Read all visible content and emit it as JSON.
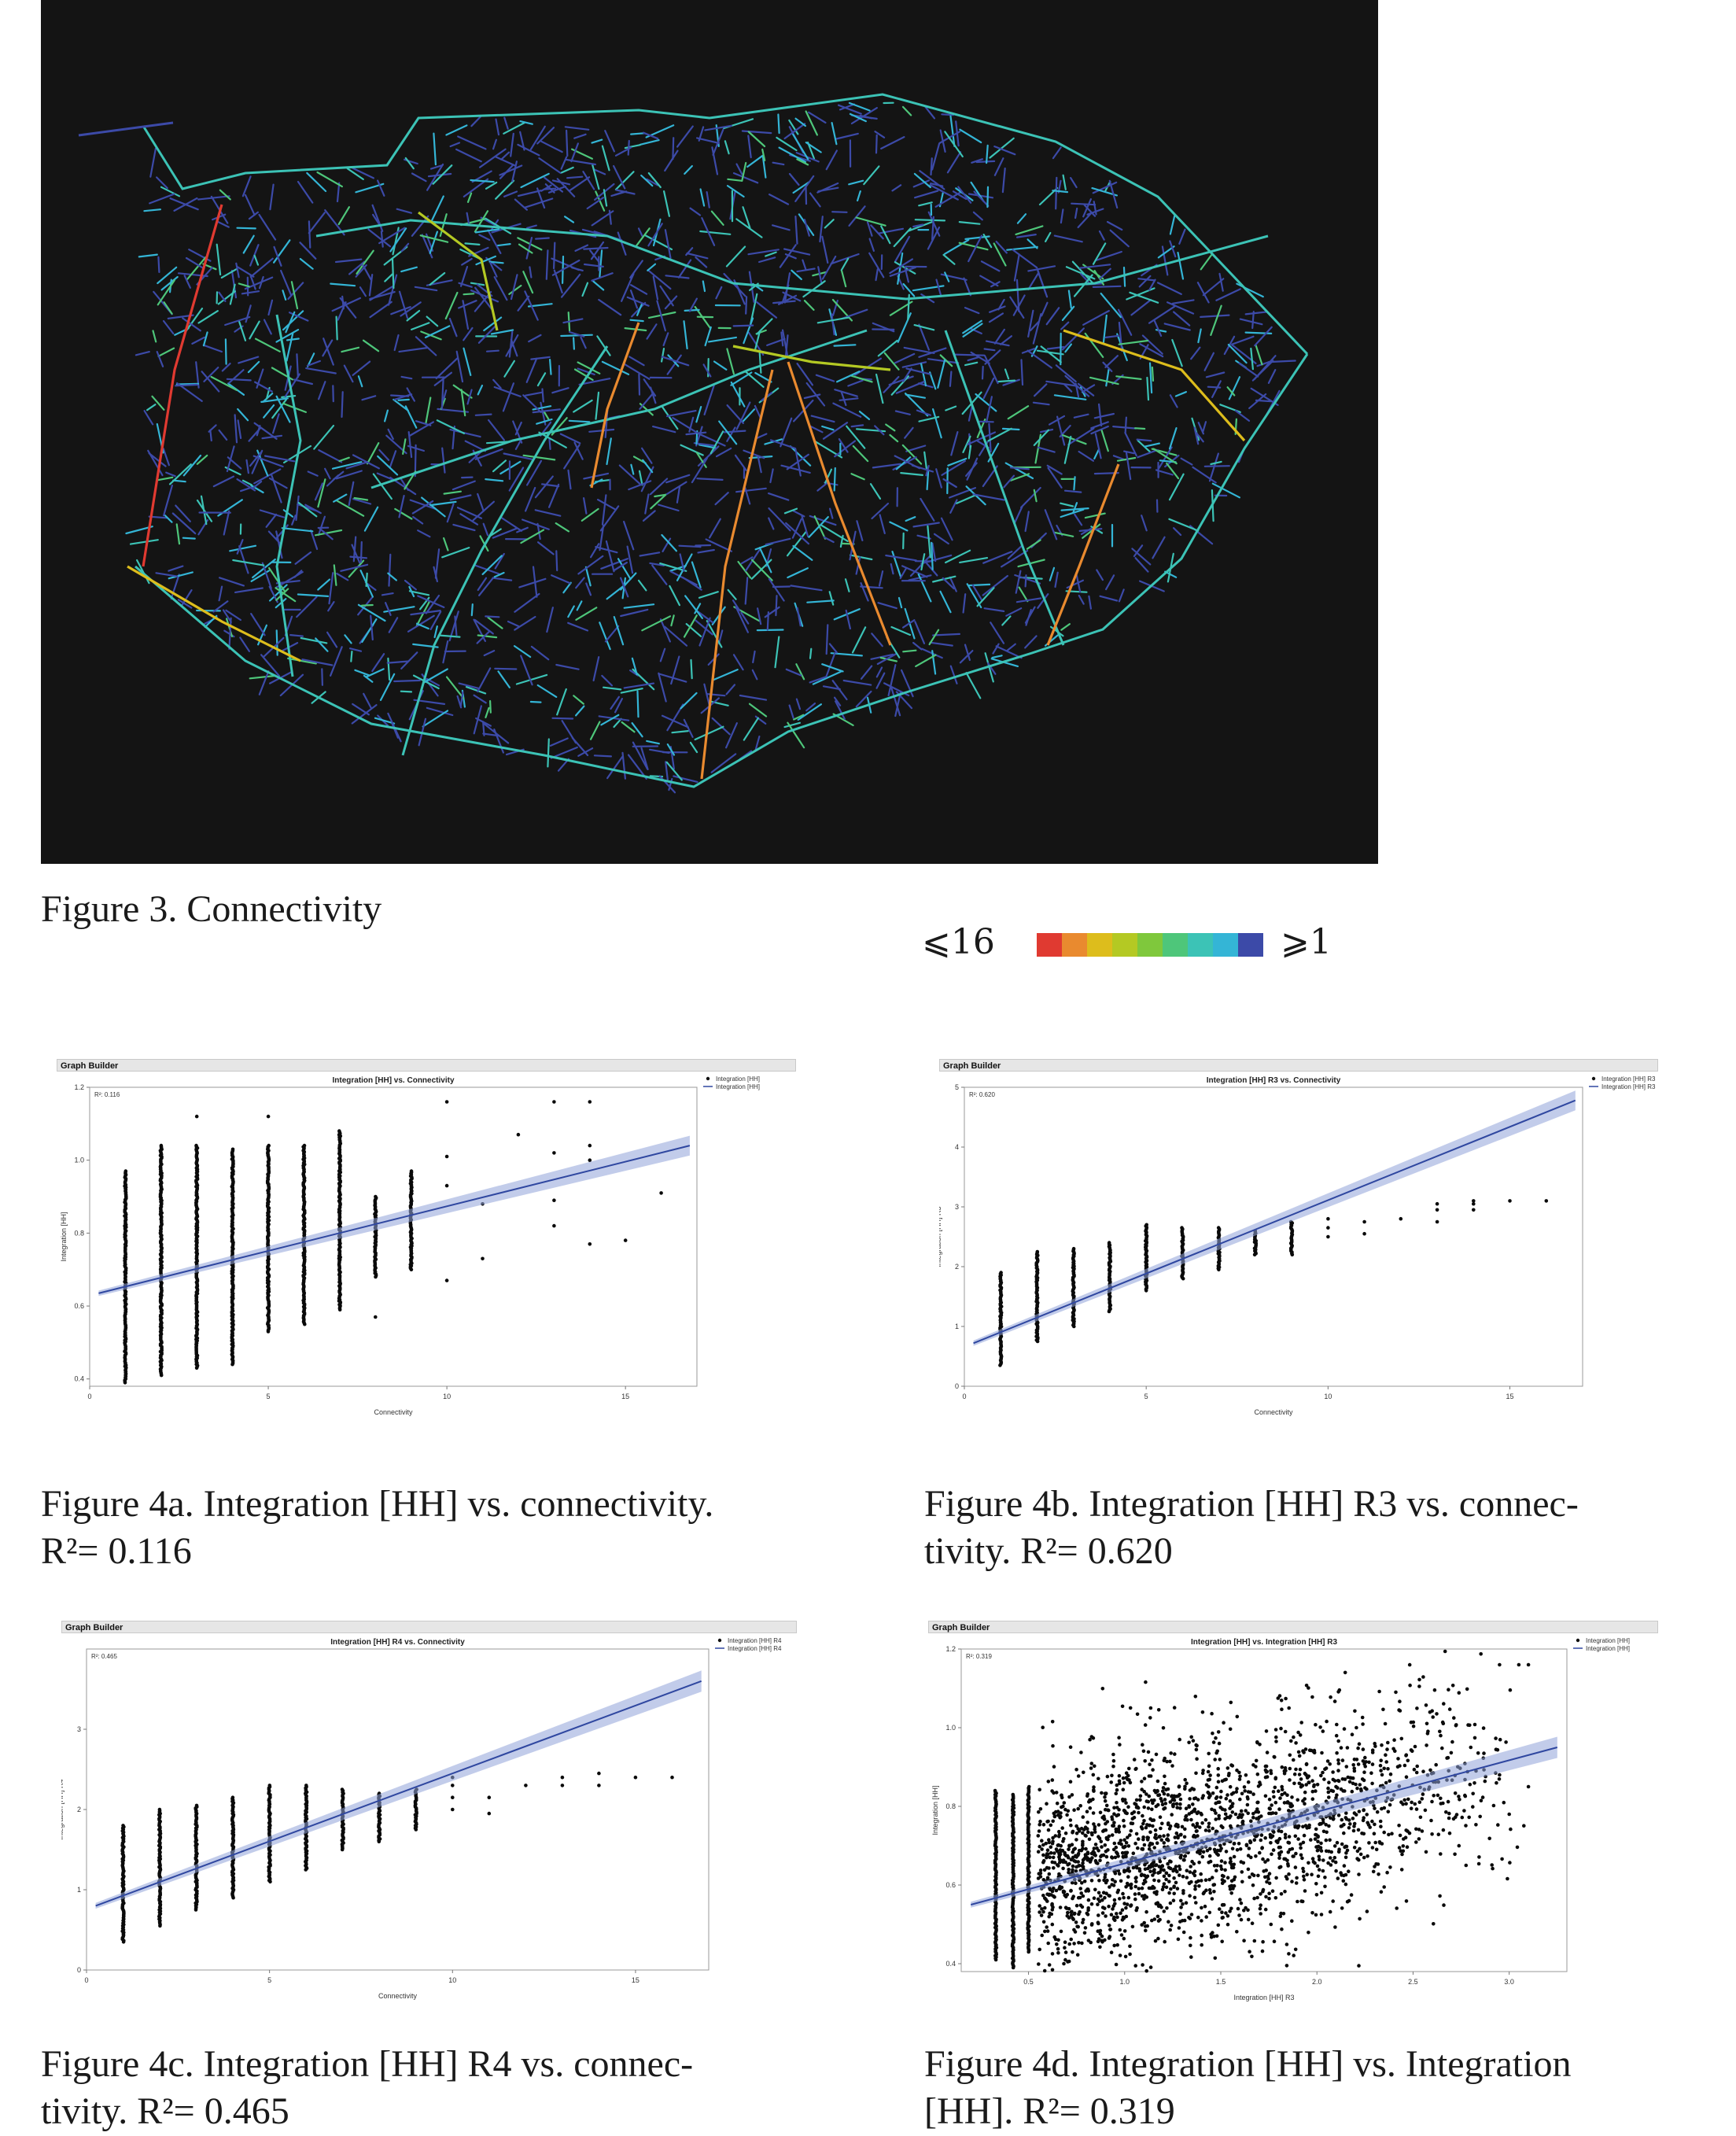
{
  "figure3": {
    "caption": "Figure 3. Connectivity",
    "legend": {
      "max_label": "⩽16",
      "min_label": "⩾1",
      "colors": [
        "#e03a31",
        "#e98a2f",
        "#ddbd1c",
        "#b4c923",
        "#7fc83c",
        "#4ec67a",
        "#3cc3b6",
        "#34b5d6",
        "#3c4aa8"
      ]
    }
  },
  "charts": [
    {
      "id": "4a",
      "header": "Graph Builder",
      "caption_line1": "Figure 4a. Integration [HH] vs. connectivity.",
      "caption_line2": "R²= 0.116",
      "chart_data": {
        "type": "scatter",
        "title": "Integration [HH] vs. Connectivity",
        "xlabel": "Connectivity",
        "ylabel": "Integration [HH]",
        "r2_label": "R²: 0.116",
        "legend": [
          "Integration [HH]",
          "Integration [HH]"
        ],
        "xlim": [
          0,
          17
        ],
        "ylim": [
          0.38,
          1.2
        ],
        "xticks": [
          0,
          5,
          10,
          15
        ],
        "yticks": [
          0.4,
          0.6,
          0.8,
          1.0,
          1.2
        ],
        "ytick_labels": [
          "0.4",
          "0.6",
          "0.8",
          "1.0",
          "1.2"
        ],
        "fit": {
          "x": [
            0.25,
            16.8
          ],
          "y": [
            0.635,
            1.04
          ]
        },
        "columns": [
          {
            "x": 1,
            "min": 0.39,
            "max": 0.97
          },
          {
            "x": 2,
            "min": 0.41,
            "max": 1.04
          },
          {
            "x": 3,
            "min": 0.43,
            "max": 1.04
          },
          {
            "x": 4,
            "min": 0.44,
            "max": 1.03
          },
          {
            "x": 5,
            "min": 0.53,
            "max": 1.04
          },
          {
            "x": 6,
            "min": 0.55,
            "max": 1.04
          },
          {
            "x": 7,
            "min": 0.59,
            "max": 1.08
          },
          {
            "x": 8,
            "min": 0.68,
            "max": 0.9
          },
          {
            "x": 9,
            "min": 0.7,
            "max": 0.97
          }
        ],
        "points": [
          [
            3,
            1.12
          ],
          [
            5,
            1.12
          ],
          [
            8,
            0.57
          ],
          [
            10,
            1.16
          ],
          [
            10,
            0.67
          ],
          [
            10,
            1.01
          ],
          [
            10,
            0.93
          ],
          [
            11,
            0.88
          ],
          [
            11,
            0.73
          ],
          [
            12,
            1.07
          ],
          [
            13,
            1.16
          ],
          [
            13,
            1.02
          ],
          [
            13,
            0.89
          ],
          [
            13,
            0.82
          ],
          [
            14,
            1.16
          ],
          [
            14,
            1.04
          ],
          [
            14,
            1.0
          ],
          [
            14,
            0.77
          ],
          [
            15,
            0.78
          ],
          [
            16,
            0.91
          ]
        ]
      }
    },
    {
      "id": "4b",
      "header": "Graph Builder",
      "caption_line1": "Figure 4b. Integration [HH] R3 vs. connec-",
      "caption_line2": "tivity. R²= 0.620",
      "chart_data": {
        "type": "scatter",
        "title": "Integration [HH] R3 vs. Connectivity",
        "xlabel": "Connectivity",
        "ylabel": "Integration [HH] R3",
        "r2_label": "R²: 0.620",
        "legend": [
          "Integration [HH] R3",
          "Integration [HH] R3"
        ],
        "xlim": [
          0,
          17
        ],
        "ylim": [
          0,
          5
        ],
        "xticks": [
          0,
          5,
          10,
          15
        ],
        "yticks": [
          0,
          1,
          2,
          3,
          4,
          5
        ],
        "ytick_labels": [
          "0",
          "1",
          "2",
          "3",
          "4",
          "5"
        ],
        "fit": {
          "x": [
            0.25,
            16.8
          ],
          "y": [
            0.72,
            4.78
          ]
        },
        "columns": [
          {
            "x": 1,
            "min": 0.35,
            "max": 1.9
          },
          {
            "x": 2,
            "min": 0.75,
            "max": 2.25
          },
          {
            "x": 3,
            "min": 1.0,
            "max": 2.3
          },
          {
            "x": 4,
            "min": 1.25,
            "max": 2.4
          },
          {
            "x": 5,
            "min": 1.6,
            "max": 2.7
          },
          {
            "x": 6,
            "min": 1.8,
            "max": 2.65
          },
          {
            "x": 7,
            "min": 1.95,
            "max": 2.65
          },
          {
            "x": 8,
            "min": 2.2,
            "max": 2.6
          },
          {
            "x": 9,
            "min": 2.2,
            "max": 2.75
          }
        ],
        "points": [
          [
            10,
            2.5
          ],
          [
            10,
            2.65
          ],
          [
            10,
            2.8
          ],
          [
            11,
            2.55
          ],
          [
            11,
            2.75
          ],
          [
            12,
            2.8
          ],
          [
            13,
            2.75
          ],
          [
            13,
            2.95
          ],
          [
            13,
            3.05
          ],
          [
            14,
            2.95
          ],
          [
            14,
            3.05
          ],
          [
            14,
            3.1
          ],
          [
            15,
            3.1
          ],
          [
            16,
            3.1
          ]
        ]
      }
    },
    {
      "id": "4c",
      "header": "Graph Builder",
      "caption_line1": "Figure 4c. Integration [HH] R4 vs. connec-",
      "caption_line2": "tivity. R²= 0.465",
      "chart_data": {
        "type": "scatter",
        "title": "Integration [HH] R4 vs. Connectivity",
        "xlabel": "Connectivity",
        "ylabel": "Integration [HH] R4",
        "r2_label": "R²: 0.465",
        "legend": [
          "Integration [HH] R4",
          "Integration [HH] R4"
        ],
        "xlim": [
          0,
          17
        ],
        "ylim": [
          0,
          4
        ],
        "xticks": [
          0,
          5,
          10,
          15
        ],
        "yticks": [
          0,
          1,
          2,
          3
        ],
        "ytick_labels": [
          "0",
          "1",
          "2",
          "3"
        ],
        "fit": {
          "x": [
            0.25,
            16.8
          ],
          "y": [
            0.8,
            3.6
          ]
        },
        "columns": [
          {
            "x": 1,
            "min": 0.35,
            "max": 1.8
          },
          {
            "x": 2,
            "min": 0.55,
            "max": 2.0
          },
          {
            "x": 3,
            "min": 0.75,
            "max": 2.05
          },
          {
            "x": 4,
            "min": 0.9,
            "max": 2.15
          },
          {
            "x": 5,
            "min": 1.1,
            "max": 2.3
          },
          {
            "x": 6,
            "min": 1.25,
            "max": 2.3
          },
          {
            "x": 7,
            "min": 1.5,
            "max": 2.25
          },
          {
            "x": 8,
            "min": 1.6,
            "max": 2.2
          },
          {
            "x": 9,
            "min": 1.75,
            "max": 2.25
          }
        ],
        "points": [
          [
            10,
            2.0
          ],
          [
            10,
            2.15
          ],
          [
            10,
            2.3
          ],
          [
            10,
            2.4
          ],
          [
            11,
            1.95
          ],
          [
            11,
            2.15
          ],
          [
            12,
            2.3
          ],
          [
            13,
            2.3
          ],
          [
            13,
            2.4
          ],
          [
            14,
            2.3
          ],
          [
            14,
            2.45
          ],
          [
            15,
            2.4
          ],
          [
            16,
            2.4
          ]
        ]
      }
    },
    {
      "id": "4d",
      "header": "Graph Builder",
      "caption_line1": "Figure 4d. Integration [HH] vs. Integration",
      "caption_line2": "[HH]. R²= 0.319",
      "chart_data": {
        "type": "scatter",
        "title": "Integration [HH] vs. Integration [HH] R3",
        "xlabel": "Integration [HH] R3",
        "ylabel": "Integration [HH]",
        "r2_label": "R²: 0.319",
        "legend": [
          "Integration [HH]",
          "Integration [HH]"
        ],
        "xlim": [
          0.15,
          3.3
        ],
        "ylim": [
          0.38,
          1.2
        ],
        "xticks": [
          0.5,
          1.0,
          1.5,
          2.0,
          2.5,
          3.0
        ],
        "yticks": [
          0.4,
          0.6,
          0.8,
          1.0,
          1.2
        ],
        "xtick_labels": [
          "0.5",
          "1.0",
          "1.5",
          "2.0",
          "2.5",
          "3.0"
        ],
        "ytick_labels": [
          "0.4",
          "0.6",
          "0.8",
          "1.0",
          "1.2"
        ],
        "fit": {
          "x": [
            0.2,
            3.25
          ],
          "y": [
            0.55,
            0.95
          ]
        },
        "columns": [
          {
            "x": 0.33,
            "min": 0.41,
            "max": 0.84
          },
          {
            "x": 0.42,
            "min": 0.39,
            "max": 0.83
          },
          {
            "x": 0.5,
            "min": 0.43,
            "max": 0.85
          }
        ],
        "cloud": {
          "x_range": [
            0.55,
            3.1
          ],
          "center_at_x_min": 0.62,
          "center_at_x_max": 0.9,
          "spread": 0.13,
          "count": 2200
        },
        "points": [
          [
            2.95,
            1.16
          ],
          [
            3.05,
            1.16
          ],
          [
            3.1,
            1.16
          ],
          [
            2.8,
            0.95
          ],
          [
            2.95,
            0.88
          ],
          [
            3.0,
            0.78
          ],
          [
            3.1,
            0.85
          ]
        ]
      }
    }
  ]
}
